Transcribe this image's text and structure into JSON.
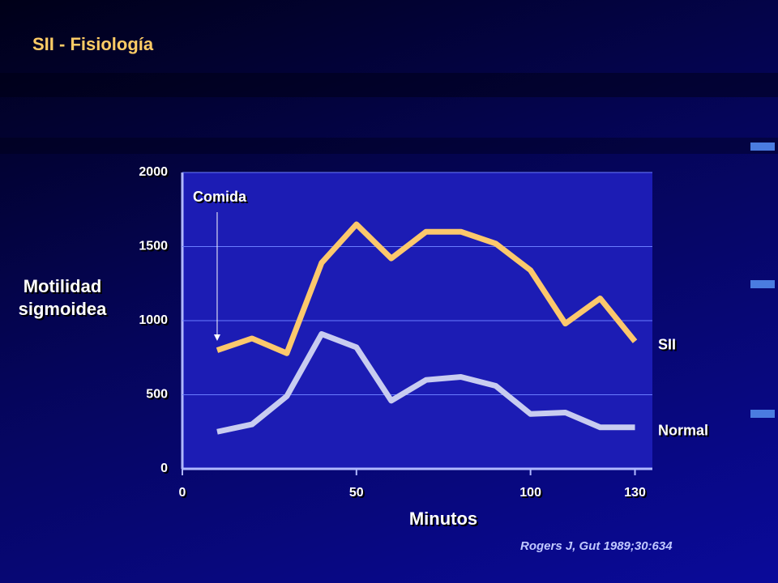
{
  "chart_data": {
    "type": "line",
    "title": "SII - Fisiología",
    "x_label": "Minutos",
    "y_label": "Motilidad sigmoidea",
    "source": "Rogers J, Gut 1989;30:634",
    "annotation": "Comida",
    "annotation_x": 10,
    "x": [
      10,
      20,
      30,
      40,
      50,
      60,
      70,
      80,
      90,
      100,
      110,
      120,
      130
    ],
    "series": [
      {
        "name": "SII",
        "color": "#fcc86c",
        "values": [
          800,
          880,
          780,
          1390,
          1650,
          1420,
          1600,
          1600,
          1520,
          1340,
          980,
          1150,
          860
        ]
      },
      {
        "name": "Normal",
        "color": "#c8ccf0",
        "values": [
          250,
          300,
          490,
          910,
          820,
          460,
          600,
          620,
          560,
          370,
          380,
          280,
          280
        ]
      }
    ],
    "xlim": [
      0,
      135
    ],
    "xticks": [
      0,
      50,
      100,
      130
    ],
    "ylim": [
      0,
      2000
    ],
    "yticks": [
      0,
      500,
      1000,
      1500,
      2000
    ],
    "grid": true
  }
}
